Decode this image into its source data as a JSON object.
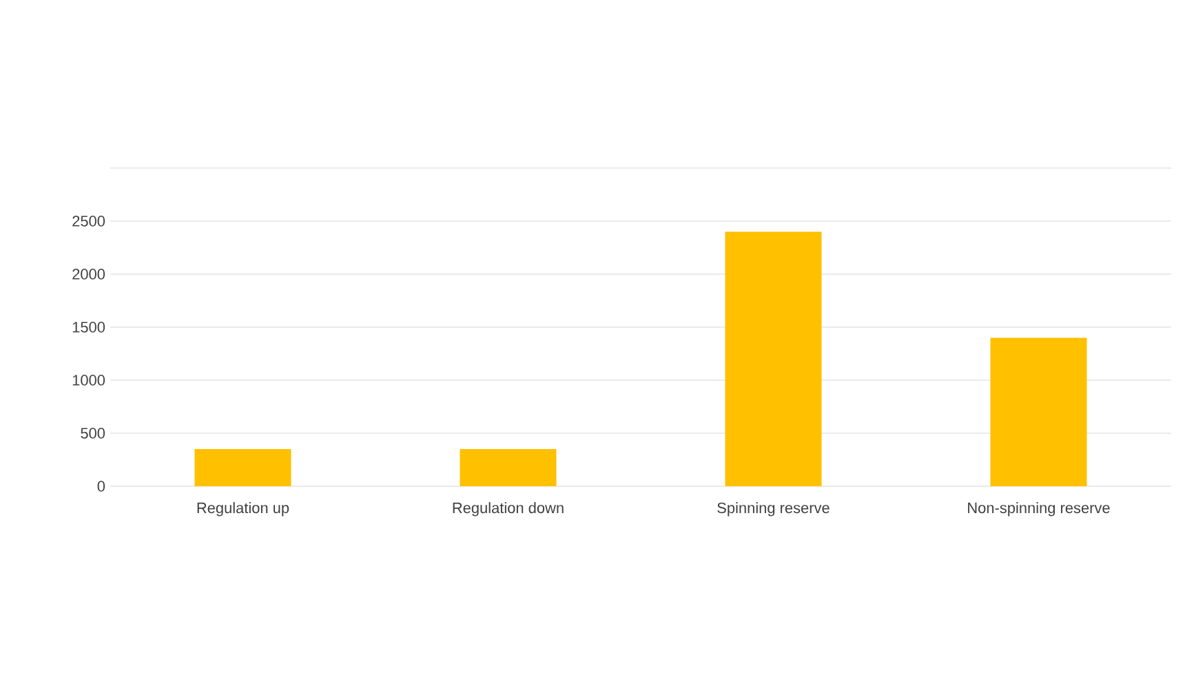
{
  "chart_data": {
    "type": "bar",
    "categories": [
      "Regulation up",
      "Regulation down",
      "Spinning reserve",
      "Non-spinning reserve"
    ],
    "values": [
      350,
      350,
      2400,
      1400
    ],
    "color": "#ffc000",
    "ylim": [
      0,
      3000
    ],
    "yticks": [
      0,
      500,
      1000,
      1500,
      2000,
      2500,
      {
        "value": 3000,
        "label": null
      }
    ],
    "grid": "y"
  }
}
